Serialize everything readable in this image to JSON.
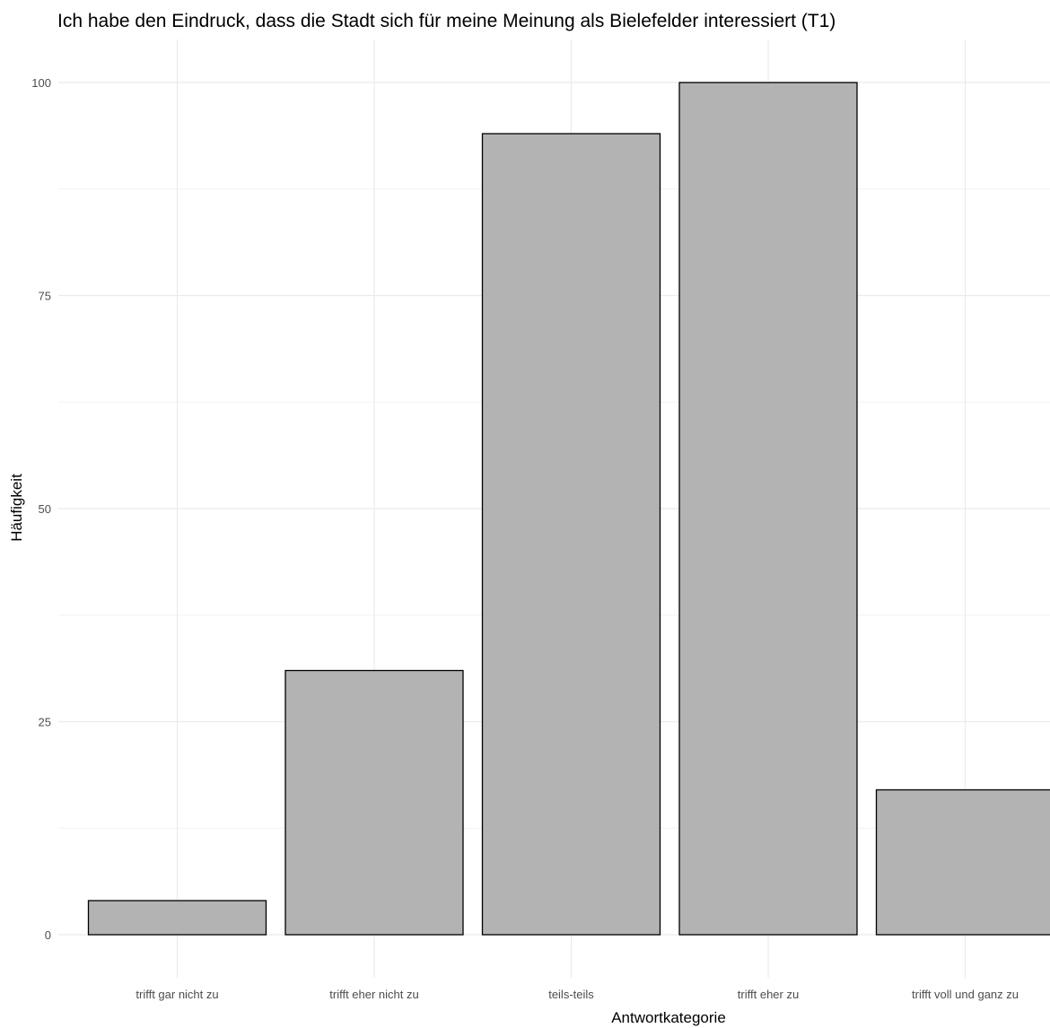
{
  "chart_data": {
    "type": "bar",
    "title": "Ich habe den Eindruck, dass die Stadt sich für meine Meinung als Bielefelder interessiert (T1)",
    "xlabel": "Antwortkategorie",
    "ylabel": "Häufigkeit",
    "categories": [
      "trifft gar nicht zu",
      "trifft eher nicht zu",
      "teils-teils",
      "trifft eher zu",
      "trifft voll und ganz zu"
    ],
    "values": [
      4,
      31,
      94,
      100,
      17
    ],
    "ylim": [
      0,
      100
    ],
    "yticks": [
      0,
      25,
      50,
      75,
      100
    ],
    "grid": true,
    "bar_fill": "#b3b3b3",
    "bar_stroke": "#000000"
  }
}
